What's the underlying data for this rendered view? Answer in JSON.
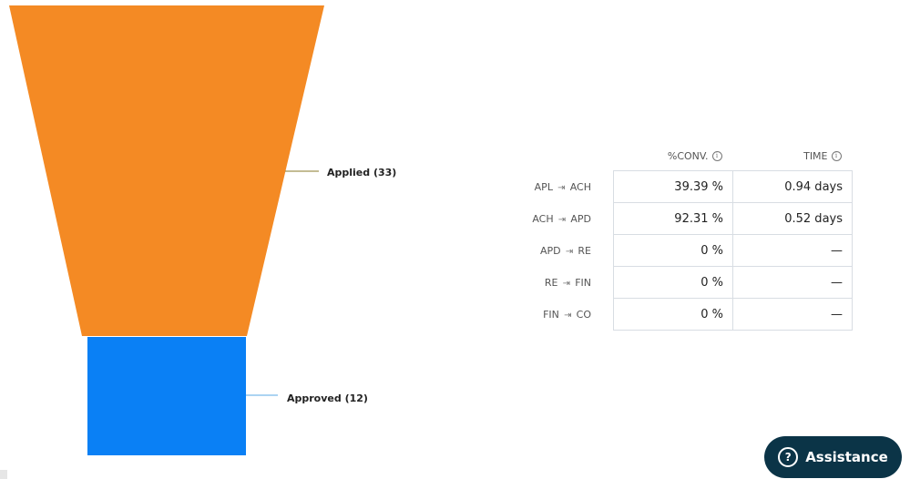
{
  "chart_data": {
    "type": "funnel",
    "stages": [
      {
        "label": "Applied (33)",
        "name": "Applied",
        "value": 33,
        "color": "#f48a24"
      },
      {
        "label": "Approved (12)",
        "name": "Approved",
        "value": 12,
        "color": "#0a80f5"
      }
    ]
  },
  "table": {
    "headers": {
      "conversion": "%CONV.",
      "time": "TIME"
    },
    "rows": [
      {
        "from": "APL",
        "to": "ACH",
        "conversion": "39.39 %",
        "time": "0.94 days"
      },
      {
        "from": "ACH",
        "to": "APD",
        "conversion": "92.31 %",
        "time": "0.52 days"
      },
      {
        "from": "APD",
        "to": "RE",
        "conversion": "0 %",
        "time": "—"
      },
      {
        "from": "RE",
        "to": "FIN",
        "conversion": "0 %",
        "time": "—"
      },
      {
        "from": "FIN",
        "to": "CO",
        "conversion": "0 %",
        "time": "—"
      }
    ]
  },
  "assistance": {
    "label": "Assistance",
    "icon": "question-circle-icon"
  },
  "icons": {
    "info": "info-icon",
    "arrow": "arrow-right-to-bar-icon"
  }
}
